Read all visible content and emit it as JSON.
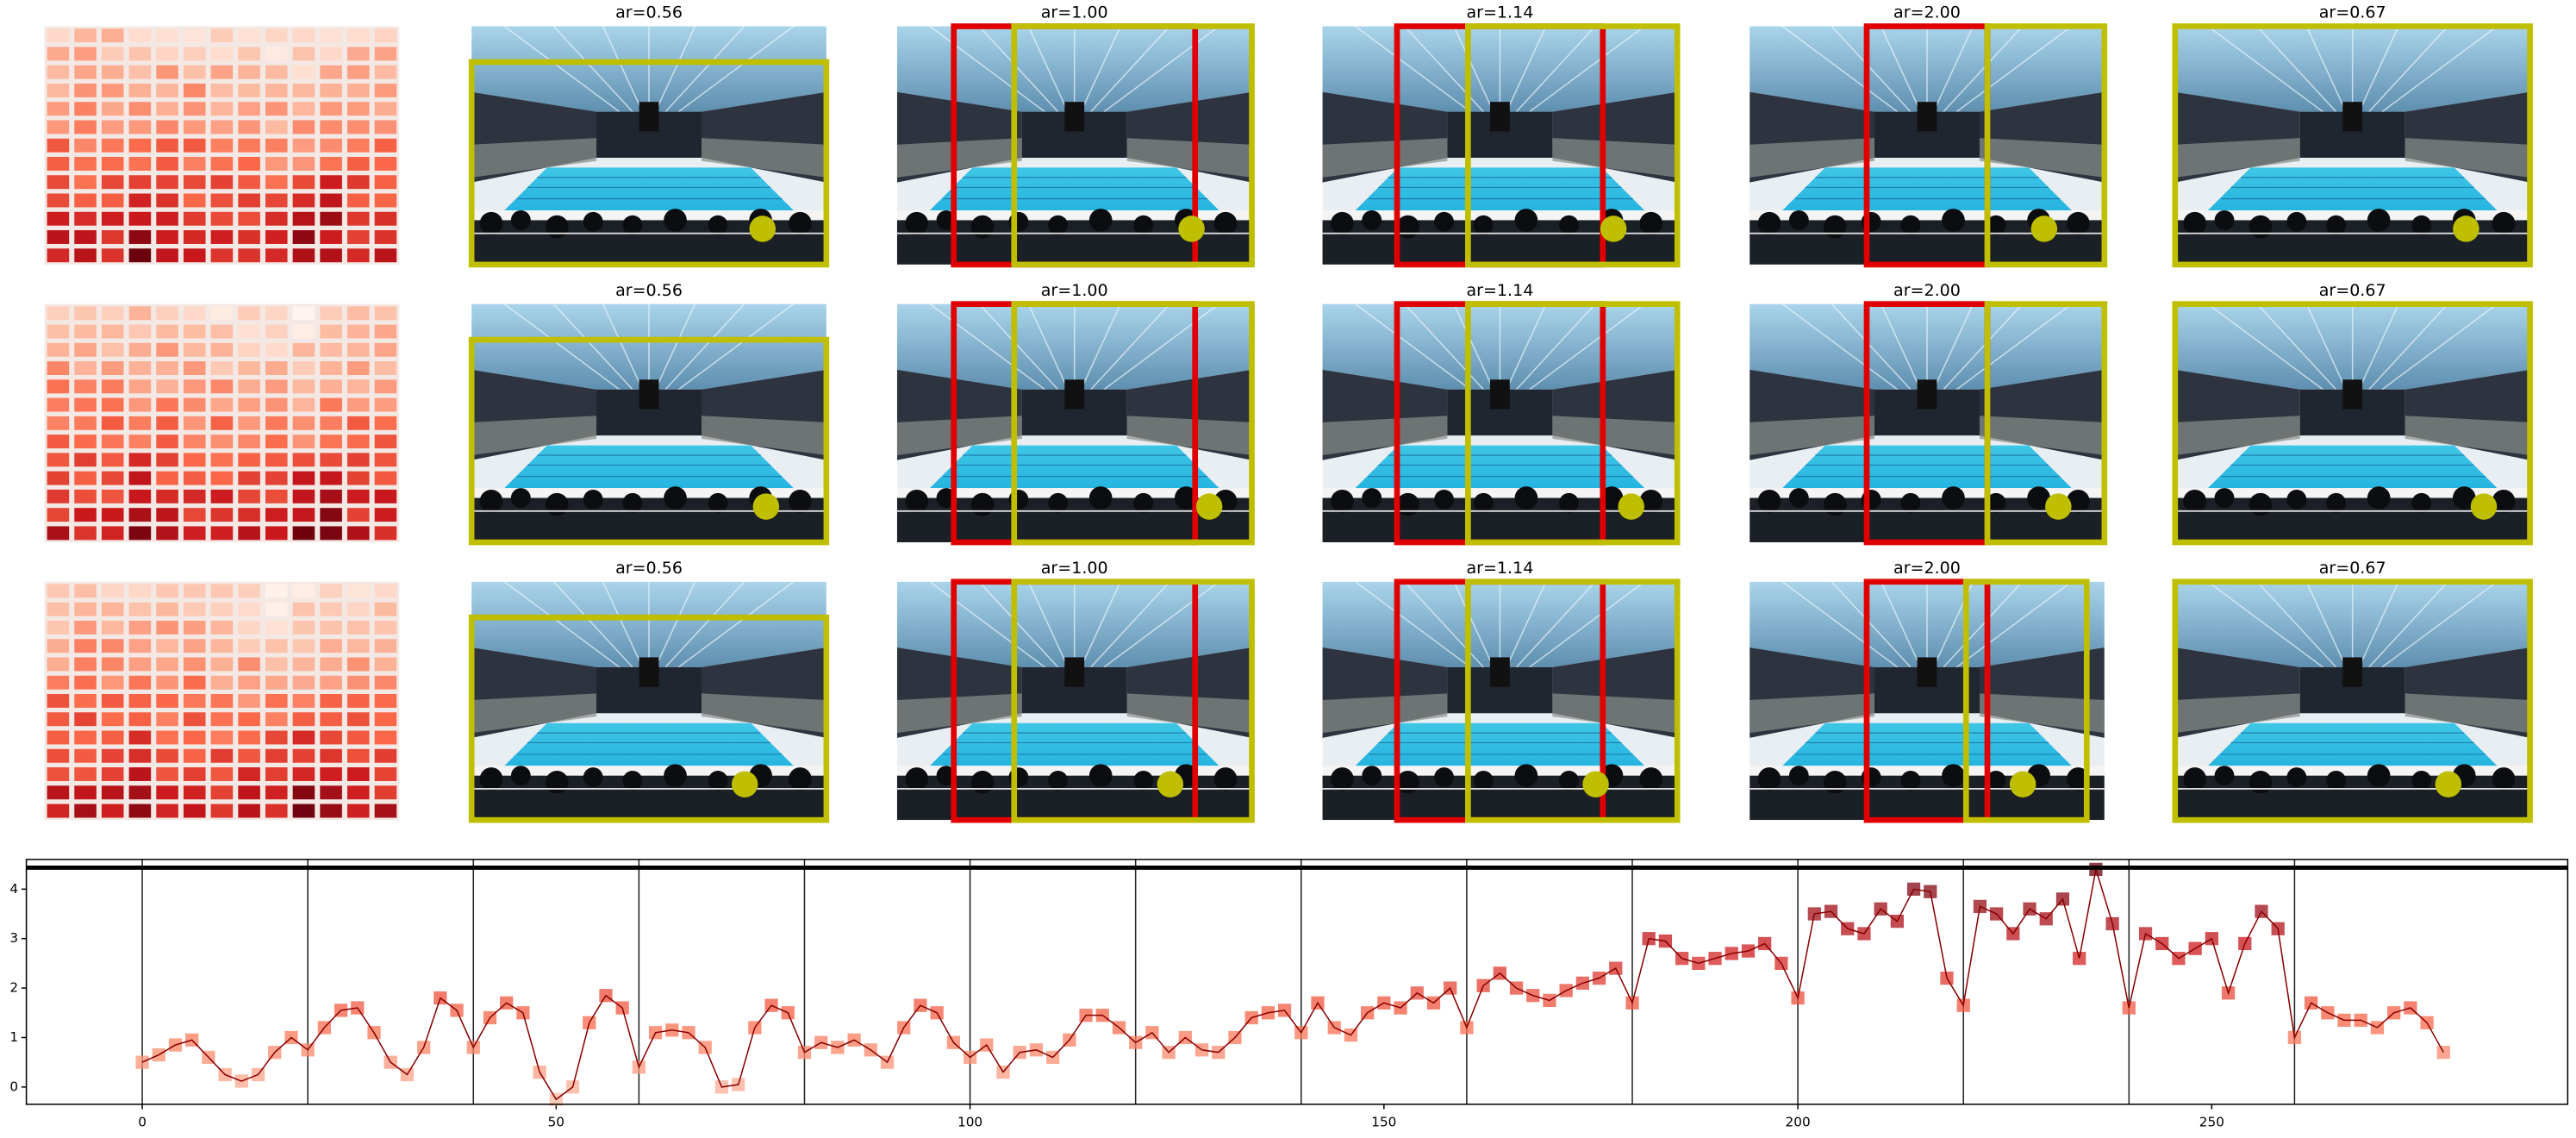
{
  "grid": {
    "rows": [
      [
        "ar=0.56",
        "ar=1.00",
        "ar=1.14",
        "ar=2.00",
        "ar=0.67"
      ],
      [
        "ar=0.56",
        "ar=1.00",
        "ar=1.14",
        "ar=2.00",
        "ar=0.67"
      ],
      [
        "ar=0.56",
        "ar=1.00",
        "ar=1.14",
        "ar=2.00",
        "ar=0.67"
      ]
    ]
  },
  "chart_data": {
    "type": "line",
    "x": [
      0,
      2,
      4,
      6,
      8,
      10,
      12,
      14,
      16,
      18,
      20,
      22,
      24,
      26,
      28,
      30,
      32,
      34,
      36,
      38,
      40,
      42,
      44,
      46,
      48,
      50,
      52,
      54,
      56,
      58,
      60,
      62,
      64,
      66,
      68,
      70,
      72,
      74,
      76,
      78,
      80,
      82,
      84,
      86,
      88,
      90,
      92,
      94,
      96,
      98,
      100,
      102,
      104,
      106,
      108,
      110,
      112,
      114,
      116,
      118,
      120,
      122,
      124,
      126,
      128,
      130,
      132,
      134,
      136,
      138,
      140,
      142,
      144,
      146,
      148,
      150,
      152,
      154,
      156,
      158,
      160,
      162,
      164,
      166,
      168,
      170,
      172,
      174,
      176,
      178,
      180,
      182,
      184,
      186,
      188,
      190,
      192,
      194,
      196,
      198,
      200,
      202,
      204,
      206,
      208,
      210,
      212,
      214,
      216,
      218,
      220,
      222,
      224,
      226,
      228,
      230,
      232,
      234,
      236,
      238,
      240,
      242,
      244,
      246,
      248,
      250,
      252,
      254,
      256,
      258,
      260,
      262,
      264,
      266,
      268,
      270,
      272,
      274,
      276,
      278
    ],
    "values": [
      0.5,
      0.65,
      0.85,
      0.95,
      0.6,
      0.25,
      0.12,
      0.25,
      0.7,
      1.0,
      0.75,
      1.2,
      1.55,
      1.6,
      1.1,
      0.5,
      0.25,
      0.8,
      1.8,
      1.55,
      0.8,
      1.4,
      1.7,
      1.5,
      0.3,
      -0.25,
      0.0,
      1.3,
      1.85,
      1.6,
      0.4,
      1.1,
      1.15,
      1.1,
      0.8,
      0.0,
      0.05,
      1.2,
      1.65,
      1.5,
      0.7,
      0.9,
      0.8,
      0.95,
      0.75,
      0.5,
      1.2,
      1.65,
      1.5,
      0.9,
      0.6,
      0.85,
      0.3,
      0.7,
      0.75,
      0.6,
      0.95,
      1.45,
      1.45,
      1.2,
      0.9,
      1.1,
      0.7,
      1.0,
      0.75,
      0.7,
      1.0,
      1.4,
      1.5,
      1.55,
      1.1,
      1.7,
      1.2,
      1.05,
      1.5,
      1.7,
      1.6,
      1.9,
      1.7,
      2.0,
      1.2,
      2.05,
      2.3,
      2.0,
      1.85,
      1.75,
      1.95,
      2.1,
      2.2,
      2.4,
      1.7,
      3.0,
      2.95,
      2.6,
      2.5,
      2.6,
      2.7,
      2.75,
      2.9,
      2.5,
      1.8,
      3.5,
      3.55,
      3.2,
      3.1,
      3.6,
      3.35,
      4.0,
      3.95,
      2.2,
      1.65,
      3.65,
      3.5,
      3.1,
      3.6,
      3.4,
      3.8,
      2.6,
      4.4,
      3.3,
      1.6,
      3.1,
      2.9,
      2.6,
      2.8,
      3.0,
      1.9,
      2.9,
      3.55,
      3.2,
      1.0,
      1.7,
      1.5,
      1.35,
      1.35,
      1.2,
      1.5,
      1.6,
      1.3,
      0.7
    ],
    "vlines": [
      0,
      20,
      40,
      60,
      80,
      100,
      120,
      140,
      160,
      180,
      200,
      220,
      240,
      260
    ],
    "xlim": [
      -14,
      293
    ],
    "ylim": [
      -0.35,
      4.6
    ],
    "xticks": [
      0,
      50,
      100,
      150,
      200,
      250
    ],
    "yticks": [
      0,
      1,
      2,
      3,
      4
    ],
    "line_color": "#8b0000",
    "colormap": "Reds"
  }
}
